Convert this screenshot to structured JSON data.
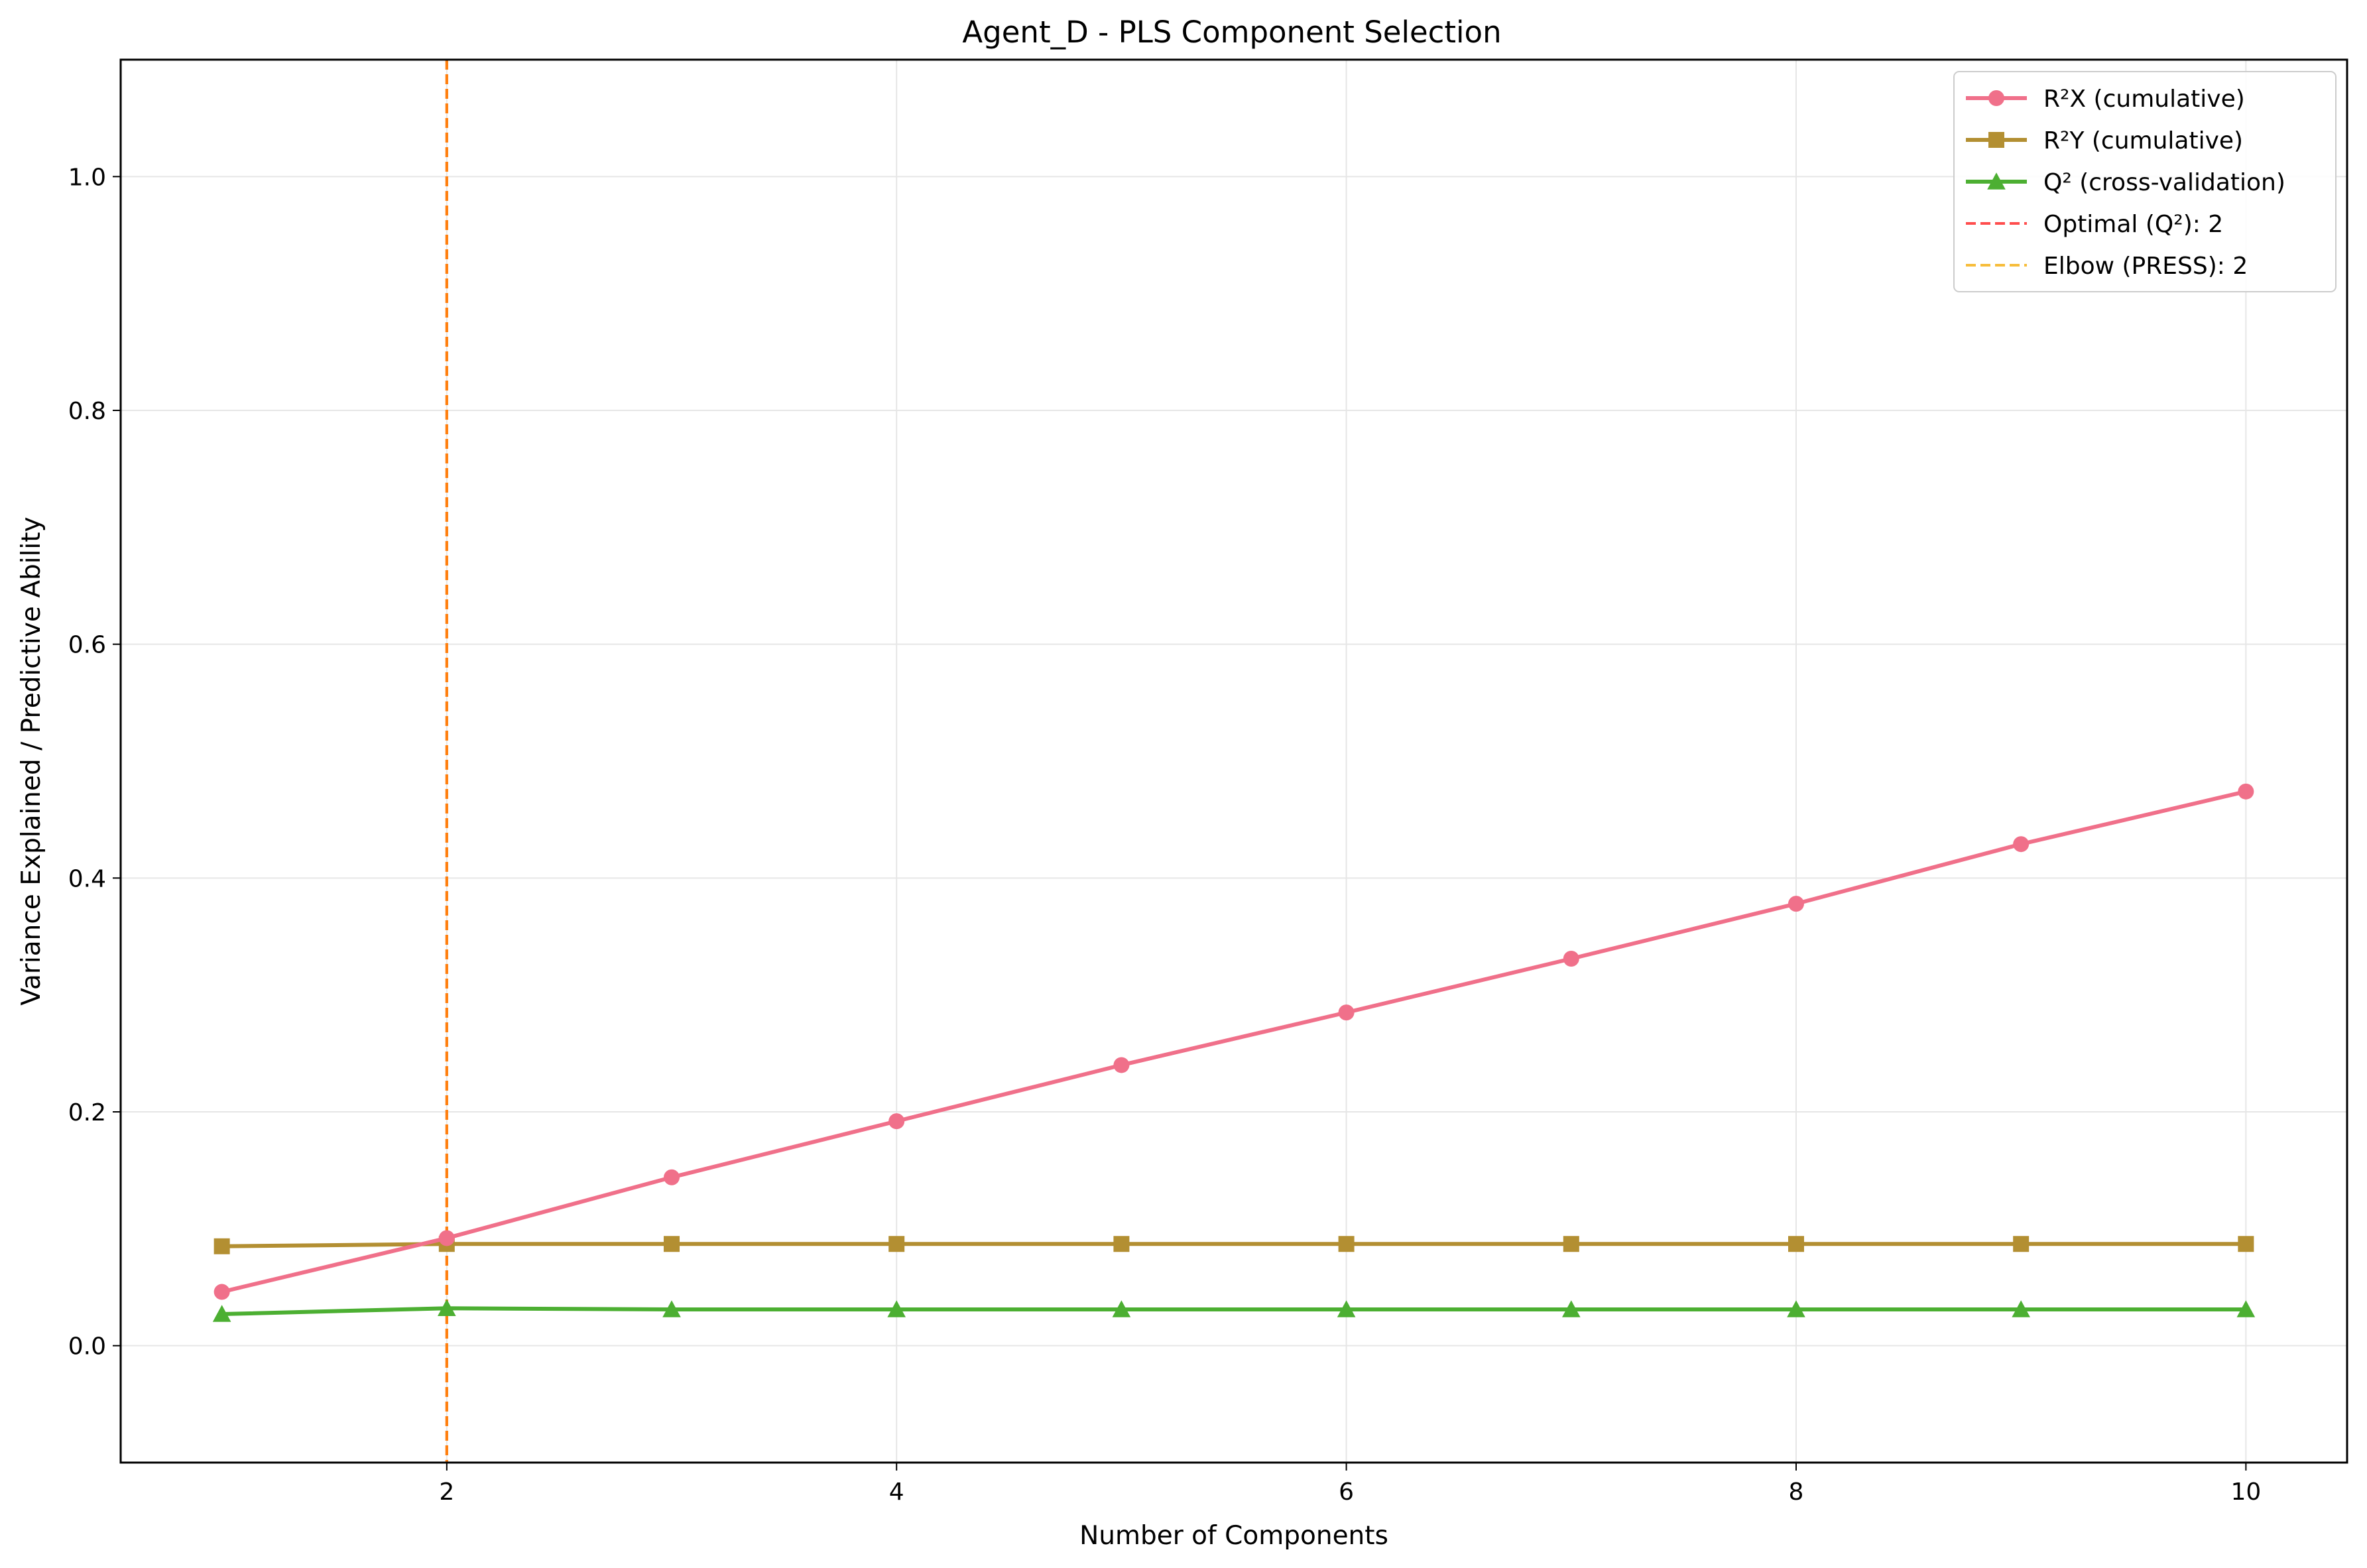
{
  "chart_data": {
    "type": "line",
    "title": "Agent_D - PLS Component Selection",
    "xlabel": "Number of Components",
    "ylabel": "Variance Explained / Predictive Ability",
    "xlim": [
      0.55,
      10.45
    ],
    "ylim": [
      -0.1,
      1.1
    ],
    "x_ticks": [
      2,
      4,
      6,
      8,
      10
    ],
    "y_ticks": [
      0.0,
      0.2,
      0.4,
      0.6,
      0.8,
      1.0
    ],
    "x_tick_labels": [
      "2",
      "4",
      "6",
      "8",
      "10"
    ],
    "y_tick_labels": [
      "0.0",
      "0.2",
      "0.4",
      "0.6",
      "0.8",
      "1.0"
    ],
    "grid": true,
    "legend_position": "top-right",
    "x": [
      1,
      2,
      3,
      4,
      5,
      6,
      7,
      8,
      9,
      10
    ],
    "series": [
      {
        "name": "R²X (cumulative)",
        "color": "#f0708a",
        "marker": "circle",
        "values": [
          0.046,
          0.092,
          0.144,
          0.192,
          0.24,
          0.285,
          0.331,
          0.378,
          0.429,
          0.474
        ]
      },
      {
        "name": "R²Y (cumulative)",
        "color": "#b38f32",
        "marker": "square",
        "values": [
          0.085,
          0.087,
          0.087,
          0.087,
          0.087,
          0.087,
          0.087,
          0.087,
          0.087,
          0.087
        ]
      },
      {
        "name": "Q² (cross-validation)",
        "color": "#4caf32",
        "marker": "triangle",
        "values": [
          0.027,
          0.032,
          0.031,
          0.031,
          0.031,
          0.031,
          0.031,
          0.031,
          0.031,
          0.031
        ]
      }
    ],
    "vlines": [
      {
        "name": "Optimal (Q²): 2",
        "x": 2,
        "color": "#ff4d4d"
      },
      {
        "name": "Elbow (PRESS): 2",
        "x": 2,
        "color": "#f7bd3b"
      }
    ],
    "vline_overlap_color": "#ff7f0e"
  }
}
